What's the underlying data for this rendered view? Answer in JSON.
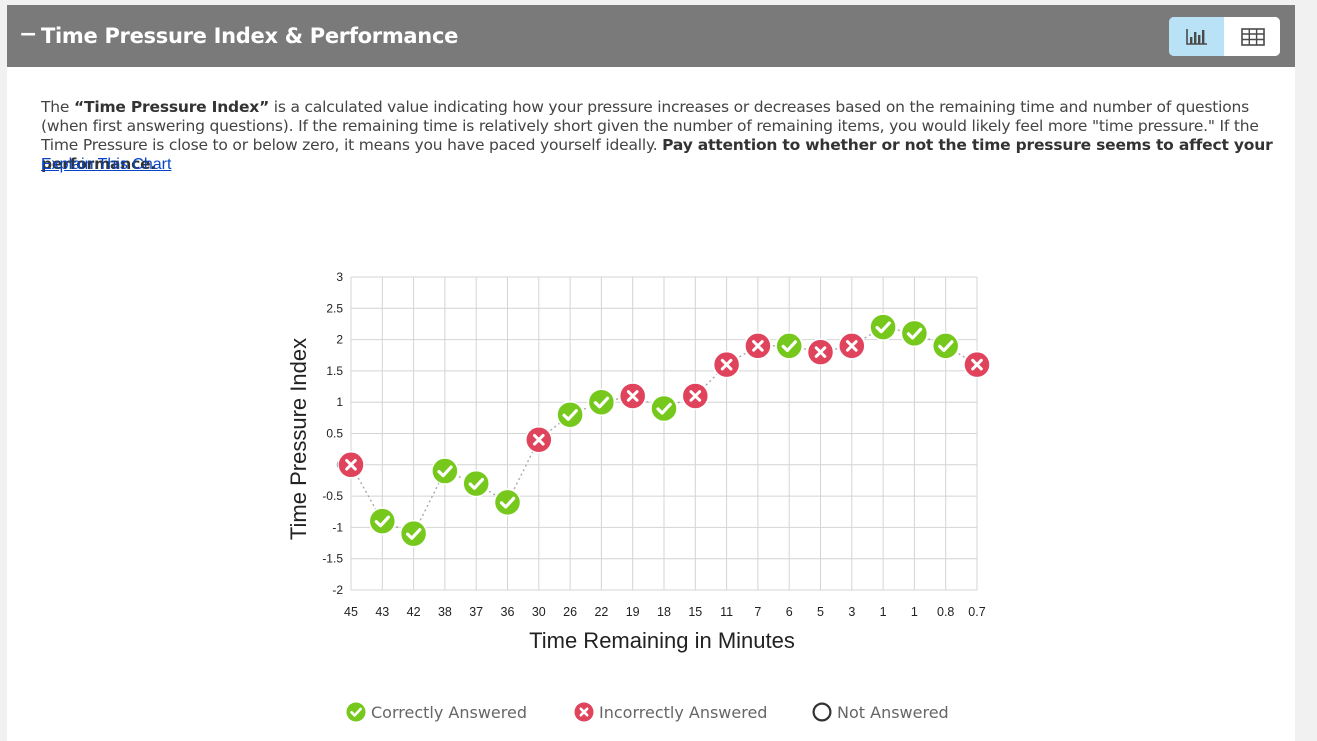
{
  "header": {
    "collapse_symbol": "−",
    "title": "Time Pressure Index & Performance",
    "toggle": {
      "chart_view": "chart-view",
      "table_view": "table-view"
    }
  },
  "description": {
    "prefix": "The ",
    "bold_term": "“Time Pressure Index”",
    "body": " is a calculated value indicating how your pressure increases or decreases based on the remaining time and number of questions (when first answering questions). If the remaining time is relatively short given the number of remaining items, you would likely feel more \"time pressure.\" If the Time Pressure is close to or below zero, it means you have paced yourself ideally. ",
    "bold_tail": "Pay attention to whether or not the time pressure seems to affect your performance.",
    "link": "Explain This Chart"
  },
  "chart_data": {
    "type": "scatter",
    "xlabel": "Time Remaining in Minutes",
    "ylabel": "Time Pressure Index",
    "ylim": [
      -2,
      3
    ],
    "yticks": [
      "3",
      "2.5",
      "2",
      "1.5",
      "1",
      "0.5",
      "0",
      "-0.5",
      "-1",
      "-1.5",
      "-2"
    ],
    "categories": [
      "45",
      "43",
      "42",
      "38",
      "37",
      "36",
      "30",
      "26",
      "22",
      "19",
      "18",
      "15",
      "11",
      "7",
      "6",
      "5",
      "3",
      "1",
      "1",
      "0.8",
      "0.7"
    ],
    "values": [
      0,
      -0.9,
      -1.1,
      -0.1,
      -0.3,
      -0.6,
      0.4,
      0.8,
      1.0,
      1.1,
      0.9,
      1.1,
      1.6,
      1.9,
      1.9,
      1.8,
      1.9,
      2.2,
      2.1,
      1.9,
      1.6
    ],
    "status": [
      "incorrect",
      "correct",
      "correct",
      "correct",
      "correct",
      "correct",
      "incorrect",
      "correct",
      "correct",
      "incorrect",
      "correct",
      "incorrect",
      "incorrect",
      "incorrect",
      "correct",
      "incorrect",
      "incorrect",
      "correct",
      "correct",
      "correct",
      "incorrect"
    ],
    "colors": {
      "correct": "#76c91c",
      "incorrect": "#e0445d",
      "grid": "#d4d4d4",
      "line": "#a8a8a8"
    }
  },
  "legend": {
    "correct": "Correctly Answered",
    "incorrect": "Incorrectly Answered",
    "not_answered": "Not Answered"
  }
}
